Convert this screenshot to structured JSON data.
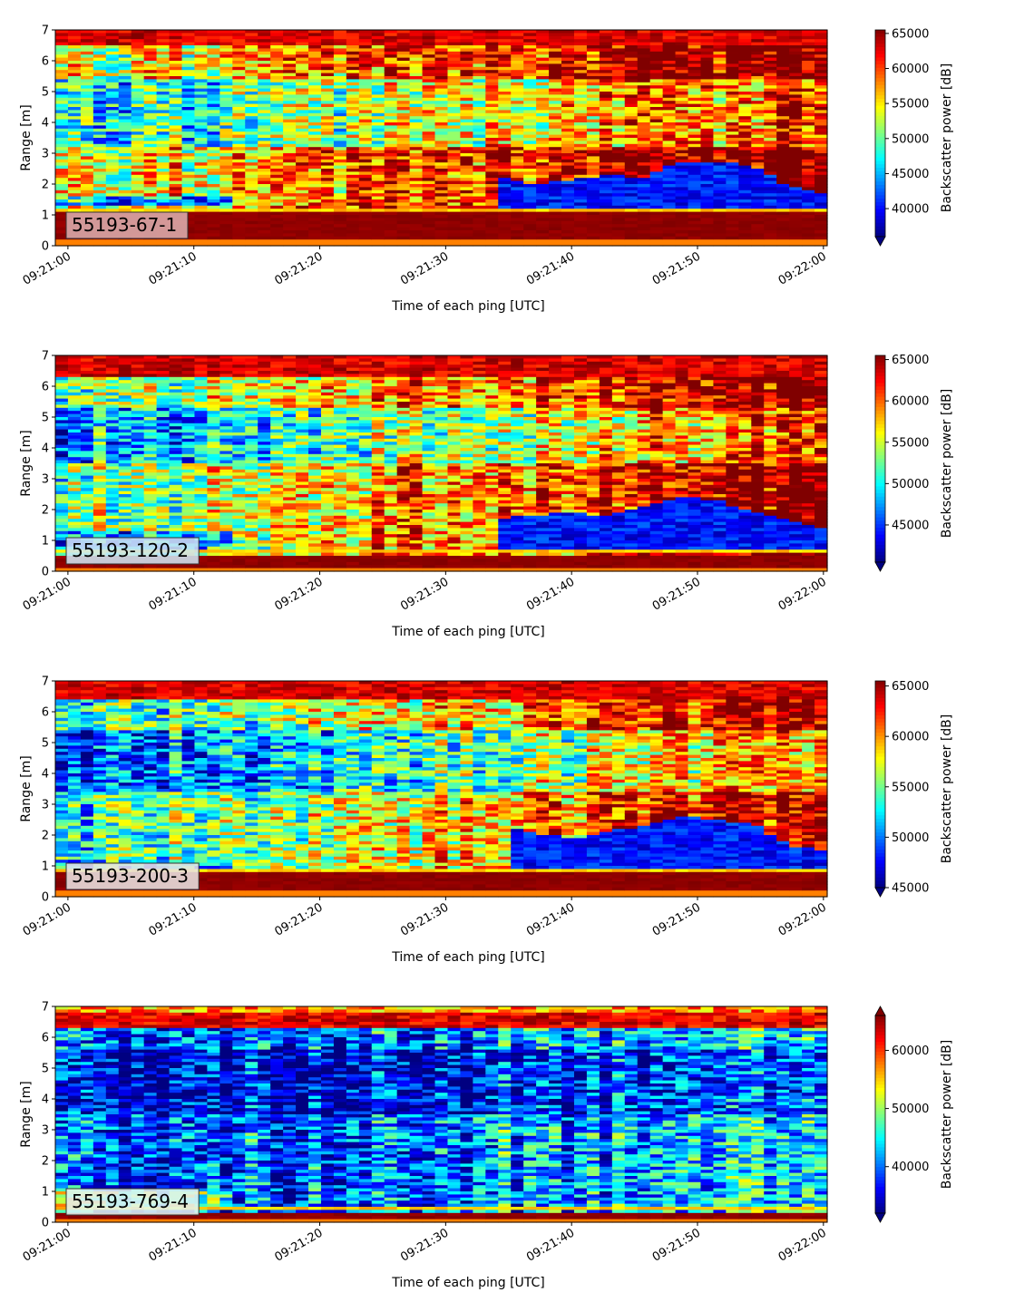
{
  "chart_data": [
    {
      "type": "heatmap",
      "panel_label": "55193-67-1",
      "xlabel": "Time of each ping [UTC]",
      "ylabel": "Range [m]",
      "x_ticks": [
        "09:21:00",
        "09:21:10",
        "09:21:20",
        "09:21:30",
        "09:21:40",
        "09:21:50",
        "09:22:00"
      ],
      "x_range_seconds": [
        -1,
        60.3
      ],
      "y_ticks": [
        0,
        1,
        2,
        3,
        4,
        5,
        6,
        7
      ],
      "ylim": [
        0,
        7
      ],
      "colorbar_label": "Backscatter power [dB]",
      "colorbar_ticks": [
        40000,
        45000,
        50000,
        55000,
        60000,
        65000
      ],
      "colorbar_range": [
        36000,
        65500
      ],
      "colorbar_extend": "min",
      "colormap": "jet",
      "label_box_color": "#dcadad",
      "bottom_layer": {
        "range_m": [
          0.25,
          1.05
        ],
        "value": 65000
      },
      "ridge_range_m": 1.12,
      "upper_band_range_m": [
        6.5,
        7.0
      ],
      "low_layer": {
        "start_s": 34,
        "end_s": 60.3,
        "top_m": [
          2.2,
          2.0,
          2.1,
          2.3,
          2.2,
          2.7,
          2.75,
          2.6,
          1.9,
          1.7
        ]
      },
      "mid_zone": {
        "range_m": [
          3.2,
          5.4
        ],
        "value_left": 46000,
        "value_right": 61000
      },
      "notes_left_band_m": [
        1.3,
        1.6
      ]
    },
    {
      "type": "heatmap",
      "panel_label": "55193-120-2",
      "xlabel": "Time of each ping [UTC]",
      "ylabel": "Range [m]",
      "x_ticks": [
        "09:21:00",
        "09:21:10",
        "09:21:20",
        "09:21:30",
        "09:21:40",
        "09:21:50",
        "09:22:00"
      ],
      "x_range_seconds": [
        -1,
        60.3
      ],
      "y_ticks": [
        0,
        1,
        2,
        3,
        4,
        5,
        6,
        7
      ],
      "ylim": [
        0,
        7
      ],
      "colorbar_label": "Backscatter power [dB]",
      "colorbar_ticks": [
        45000,
        50000,
        55000,
        60000,
        65000
      ],
      "colorbar_range": [
        40500,
        65500
      ],
      "colorbar_extend": "min",
      "colormap": "jet",
      "label_box_color": "#cfe6f2",
      "bottom_layer": {
        "range_m": [
          0.08,
          0.55
        ],
        "value": 65000
      },
      "ridge_range_m": 0.62,
      "upper_band_range_m": [
        6.3,
        7.0
      ],
      "low_layer": {
        "start_s": 34,
        "end_s": 60.3,
        "top_m": [
          1.7,
          1.8,
          1.9,
          1.8,
          2.1,
          2.4,
          2.3,
          1.9,
          1.6,
          1.4
        ]
      },
      "mid_zone": {
        "range_m": [
          3.5,
          5.3
        ],
        "value_left": 47000,
        "value_right": 61000
      },
      "notes_left_band_m": [
        0.6,
        1.3
      ]
    },
    {
      "type": "heatmap",
      "panel_label": "55193-200-3",
      "xlabel": "Time of each ping [UTC]",
      "ylabel": "Range [m]",
      "x_ticks": [
        "09:21:00",
        "09:21:10",
        "09:21:20",
        "09:21:30",
        "09:21:40",
        "09:21:50",
        "09:22:00"
      ],
      "x_range_seconds": [
        -1,
        60.3
      ],
      "y_ticks": [
        0,
        1,
        2,
        3,
        4,
        5,
        6,
        7
      ],
      "ylim": [
        0,
        7
      ],
      "colorbar_label": "Backscatter power [dB]",
      "colorbar_ticks": [
        45000,
        50000,
        55000,
        60000,
        65000
      ],
      "colorbar_range": [
        45000,
        65500
      ],
      "colorbar_extend": "min",
      "colormap": "jet",
      "label_box_color": "#e8e4e2",
      "bottom_layer": {
        "range_m": [
          0.25,
          0.75
        ],
        "value": 65000
      },
      "ridge_range_m": 0.82,
      "upper_band_range_m": [
        6.4,
        7.0
      ],
      "low_layer": {
        "start_s": 35,
        "end_s": 60.3,
        "top_m": [
          2.2,
          2.0,
          1.9,
          2.2,
          2.3,
          2.6,
          2.5,
          2.3,
          1.6,
          1.5
        ]
      },
      "mid_zone": {
        "range_m": [
          3.4,
          5.4
        ],
        "value_left": 48000,
        "value_right": 60000
      },
      "notes_left_band_m": [
        0.8,
        1.2
      ]
    },
    {
      "type": "heatmap",
      "panel_label": "55193-769-4",
      "xlabel": "Time of each ping [UTC]",
      "ylabel": "Range [m]",
      "x_ticks": [
        "09:21:00",
        "09:21:10",
        "09:21:20",
        "09:21:30",
        "09:21:40",
        "09:21:50",
        "09:22:00"
      ],
      "x_range_seconds": [
        -1,
        60.3
      ],
      "y_ticks": [
        0,
        1,
        2,
        3,
        4,
        5,
        6,
        7
      ],
      "ylim": [
        0,
        7
      ],
      "colorbar_label": "Backscatter power [dB]",
      "colorbar_ticks": [
        40000,
        50000,
        60000
      ],
      "colorbar_range": [
        32000,
        66000
      ],
      "colorbar_extend": "both",
      "colormap": "jet",
      "label_box_color": "#e2f4ee",
      "bottom_layer": {
        "range_m": [
          0.15,
          0.35
        ],
        "value": 66000
      },
      "ridge_range_m": 0.42,
      "upper_band_range_m": [
        6.3,
        6.8
      ],
      "low_layer": null,
      "mid_zone": {
        "range_m": [
          3.5,
          5.6
        ],
        "value_left": 33500,
        "value_right": 40000
      },
      "notes_left_band_m": [
        0.5,
        1.0
      ]
    }
  ]
}
